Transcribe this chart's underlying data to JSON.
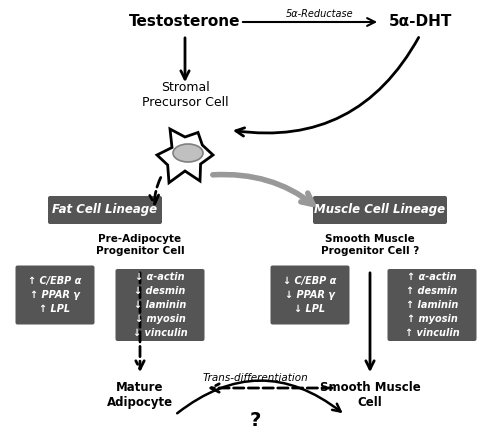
{
  "bg_color": "#ffffff",
  "testosterone_label": "Testosterone",
  "reductase_label": "5α-Reductase",
  "dht_label": "5α-DHT",
  "stromal_label": "Stromal\nPrecursor Cell",
  "fat_box_label": "Fat Cell Lineage",
  "muscle_box_label": "Muscle Cell Lineage",
  "pre_adipo_label": "Pre-Adipocyte\nProgenitor Cell",
  "smooth_muscle_prog_label": "Smooth Muscle\nProgenitor Cell ?",
  "left_up_box_text": "↑ C/EBP α\n↑ PPAR γ\n↑ LPL",
  "left_down_box_text": "↓ α-actin\n↓ desmin\n↓ laminin\n↓ myosin\n↓ vinculin",
  "right_up_box_text": "↓ C/EBP α\n↓ PPAR γ\n↓ LPL",
  "right_down_box_text": "↑ α-actin\n↑ desmin\n↑ laminin\n↑ myosin\n↑ vinculin",
  "mature_adipo_label": "Mature\nAdipocyte",
  "smooth_muscle_cell_label": "Smooth Muscle\nCell",
  "trans_diff_label": "Trans-differentiation",
  "question_mark": "?",
  "dark_box_color": "#555555",
  "dark_box_text_color": "#ffffff",
  "arrow_color": "#000000",
  "gray_arrow_color": "#999999"
}
